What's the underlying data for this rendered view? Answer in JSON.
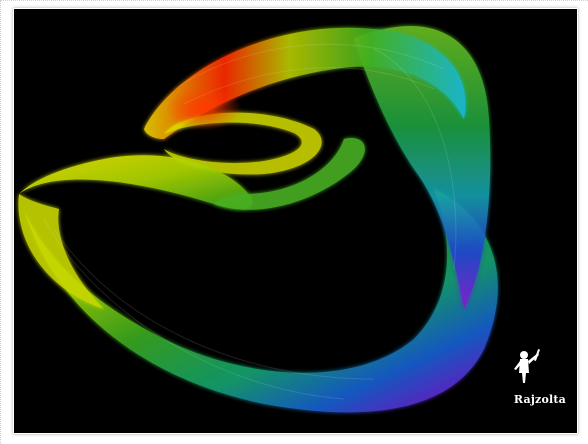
{
  "artwork": {
    "signature": "Rajzolta",
    "background_color": "#000000",
    "ribbon_colors": [
      "#ffd000",
      "#ff3000",
      "#9cd600",
      "#1f9c2a",
      "#00b0c8",
      "#1f4fd6",
      "#7a1fd6",
      "#c81fb0"
    ],
    "icon": "painter-figure-icon"
  }
}
